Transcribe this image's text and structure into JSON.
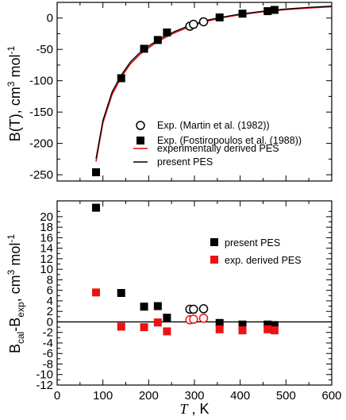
{
  "chart_data": [
    {
      "type": "scatter",
      "title": "",
      "xlabel": "",
      "ylabel": "B(T), cm3 mol-1",
      "ylabel_parts": {
        "main": "B(T), cm",
        "exp1": "3",
        "mid": " mol",
        "exp2": "-1"
      },
      "xlim": [
        0,
        600
      ],
      "ylim": [
        -260,
        25
      ],
      "xticks": [
        "0",
        "100",
        "200",
        "300",
        "400",
        "500",
        "600"
      ],
      "yticks": [
        "0",
        "-50",
        "-100",
        "-150",
        "-200",
        "-250"
      ],
      "legend_position": "lower-right",
      "series": [
        {
          "name": "Exp. (Martin et al. (1982))",
          "marker": "open-circle",
          "color": "#000000",
          "x": [
            290,
            298,
            320
          ],
          "y": [
            -13,
            -10,
            -6
          ]
        },
        {
          "name": "Exp.  (Fostiropoulos et al. (1988))",
          "marker": "filled-square",
          "color": "#000000",
          "x": [
            85,
            140,
            190,
            220,
            240,
            355,
            405,
            460,
            475
          ],
          "y": [
            -246,
            -96,
            -49,
            -35,
            -23,
            1,
            7,
            11,
            13
          ]
        },
        {
          "name": "experimentally derived PES",
          "marker": "line",
          "color": "#e01010",
          "x": [
            85,
            100,
            120,
            140,
            160,
            180,
            200,
            220,
            240,
            260,
            280,
            300,
            330,
            360,
            400,
            450,
            500,
            550,
            600
          ],
          "y": [
            -229,
            -167,
            -122,
            -94.5,
            -73,
            -58.5,
            -47.5,
            -37.5,
            -29.5,
            -22.5,
            -16.5,
            -11,
            -4.5,
            0.5,
            5.5,
            10,
            13.5,
            16,
            18
          ]
        },
        {
          "name": "present PES",
          "marker": "line",
          "color": "#000000",
          "x": [
            85,
            100,
            120,
            140,
            160,
            180,
            200,
            220,
            240,
            260,
            280,
            300,
            330,
            360,
            400,
            450,
            500,
            550,
            600
          ],
          "y": [
            -224,
            -163,
            -118,
            -91,
            -70,
            -55.5,
            -44.5,
            -35,
            -27,
            -20.5,
            -14.5,
            -9.5,
            -3,
            1.5,
            6.5,
            11,
            14.5,
            17,
            19
          ]
        }
      ]
    },
    {
      "type": "scatter",
      "title": "",
      "xlabel": "T , K",
      "xlabel_parts": {
        "symbol": "T",
        "unit": " , K"
      },
      "ylabel": "Bcal-Bexp, cm3 mol-1",
      "ylabel_parts": {
        "b1": "B",
        "sub1": "cal",
        "dash": "-B",
        "sub2": "exp",
        "main": ", cm",
        "exp1": "3",
        "mid": " mol",
        "exp2": "-1"
      },
      "xlim": [
        0,
        600
      ],
      "ylim": [
        -12,
        23
      ],
      "xticks": [
        "0",
        "100",
        "200",
        "300",
        "400",
        "500",
        "600"
      ],
      "yticks": [
        "-12",
        "-10",
        "-8",
        "-6",
        "-4",
        "-2",
        "0",
        "2",
        "4",
        "6",
        "8",
        "10",
        "12",
        "14",
        "16",
        "18",
        "20"
      ],
      "zero_line": true,
      "legend_position": "upper-right",
      "series": [
        {
          "name": "present PES",
          "marker": "filled-square",
          "color": "#000000",
          "x": [
            85,
            140,
            190,
            220,
            240,
            355,
            405,
            460,
            475
          ],
          "y": [
            21.7,
            5.5,
            2.9,
            3.0,
            0.8,
            -0.2,
            -0.5,
            -0.5,
            -0.6
          ]
        },
        {
          "name": "exp. derived PES",
          "marker": "filled-square",
          "color": "#ee1111",
          "x": [
            85,
            140,
            190,
            220,
            240,
            355,
            405,
            460,
            475
          ],
          "y": [
            5.6,
            -0.9,
            -1.0,
            -0.1,
            -1.8,
            -1.4,
            -1.6,
            -1.4,
            -1.6
          ]
        },
        {
          "name": "",
          "marker": "open-circle",
          "color": "#000000",
          "x": [
            290,
            298,
            320
          ],
          "y": [
            2.4,
            2.4,
            2.5
          ]
        },
        {
          "name": "",
          "marker": "open-circle",
          "color": "#ee1111",
          "x": [
            290,
            298,
            320
          ],
          "y": [
            0.4,
            0.5,
            0.7
          ]
        }
      ]
    }
  ]
}
